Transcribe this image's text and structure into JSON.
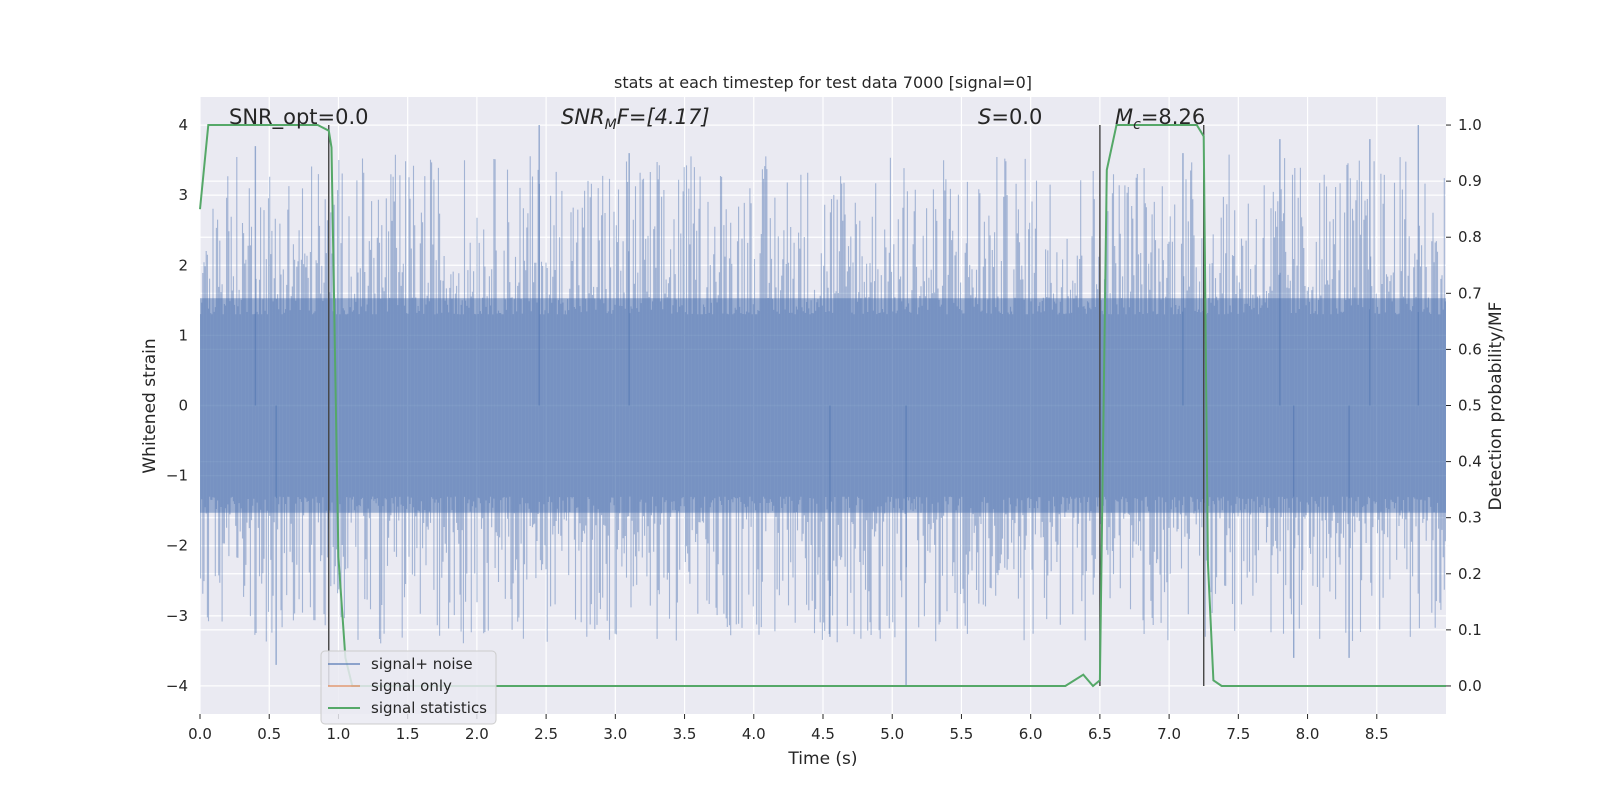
{
  "chart_data": {
    "type": "line",
    "title": "stats at each timestep for test data 7000 [signal=0]",
    "xlabel": "Time (s)",
    "ylabel": "Whitened strain",
    "ylabel_right": "Detection probability/MF",
    "xlim": [
      0.0,
      9.0
    ],
    "ylim": [
      -4.4,
      4.4
    ],
    "ylim_right": [
      -0.05,
      1.05
    ],
    "x_ticks": [
      "0.0",
      "0.5",
      "1.0",
      "1.5",
      "2.0",
      "2.5",
      "3.0",
      "3.5",
      "4.0",
      "4.5",
      "5.0",
      "5.5",
      "6.0",
      "6.5",
      "7.0",
      "7.5",
      "8.0",
      "8.5"
    ],
    "y_ticks": [
      "4",
      "3",
      "2",
      "1",
      "0",
      "−1",
      "−2",
      "−3",
      "−4"
    ],
    "y_ticks_right": [
      "1.0",
      "0.9",
      "0.8",
      "0.7",
      "0.6",
      "0.5",
      "0.4",
      "0.3",
      "0.2",
      "0.1",
      "0.0"
    ],
    "grid": true,
    "legend_placement": "lower-left",
    "annotations": {
      "snr_opt": "SNR_opt=0.0",
      "snr_mf_label": "SNR",
      "snr_mf_sub": "M",
      "snr_mf_value": "F=[4.17]",
      "s_label": "S",
      "s_value": "=0.0",
      "mc_label": "M",
      "mc_sub": "c",
      "mc_value": "=8.26"
    },
    "vertical_markers_s": [
      0.93,
      6.5,
      7.25
    ],
    "noise_envelope": {
      "note_free": "band",
      "upper_core": 1.8,
      "lower_core": -1.8,
      "notable_peaks_x": [
        0.4,
        2.45,
        3.1,
        7.1,
        7.8,
        8.45,
        8.8
      ],
      "notable_peaks_y": [
        3.7,
        4.0,
        3.6,
        3.6,
        3.8,
        3.8,
        4.0
      ],
      "notable_troughs_x": [
        0.55,
        4.55,
        5.1,
        7.9,
        8.3
      ],
      "notable_troughs_y": [
        -3.7,
        -3.3,
        -4.0,
        -3.6,
        -3.6
      ]
    },
    "series": [
      {
        "name": "signal+ noise",
        "color": "#4c72b0",
        "axis": "left",
        "representation": "dense noisy strain band"
      },
      {
        "name": "signal only",
        "color": "#dd8452",
        "axis": "left",
        "x": [],
        "y": []
      },
      {
        "name": "signal statistics",
        "color": "#55a868",
        "axis": "right",
        "x": [
          0.0,
          0.06,
          0.12,
          0.5,
          0.85,
          0.93,
          0.95,
          1.0,
          1.05,
          1.1,
          2.0,
          4.0,
          6.25,
          6.38,
          6.45,
          6.5,
          6.55,
          6.62,
          7.0,
          7.2,
          7.25,
          7.28,
          7.32,
          7.38,
          8.0,
          9.0
        ],
        "y": [
          0.85,
          1.0,
          1.0,
          1.0,
          1.0,
          0.99,
          0.96,
          0.23,
          0.05,
          0.0,
          0.0,
          0.0,
          0.0,
          0.02,
          0.0,
          0.01,
          0.92,
          1.0,
          1.0,
          1.0,
          0.98,
          0.22,
          0.01,
          0.0,
          0.0,
          0.0
        ]
      }
    ]
  }
}
